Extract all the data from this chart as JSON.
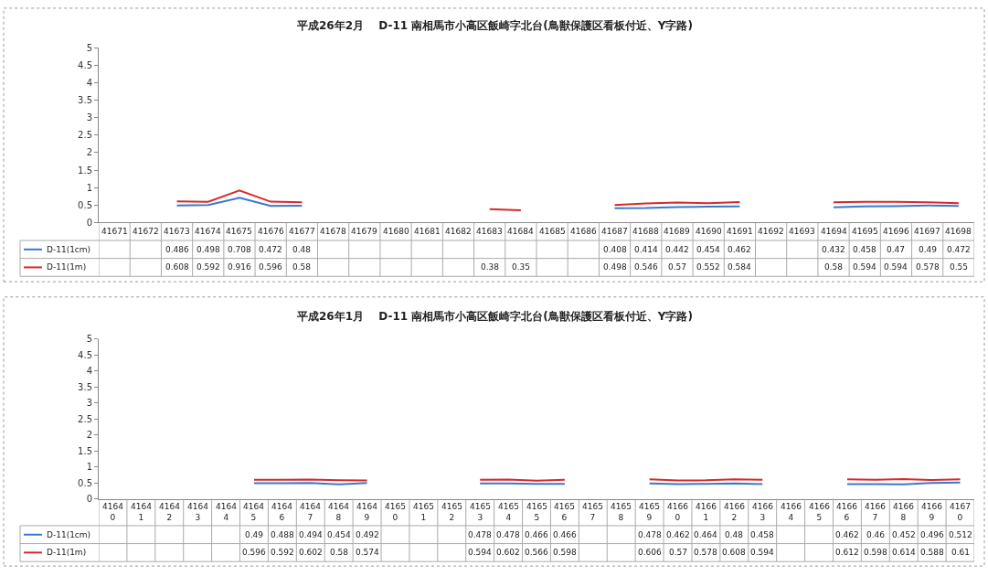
{
  "chart_data": [
    {
      "type": "line",
      "title": "平成26年2月　 D-11 南相馬市小高区飯崎字北台(鳥獣保護区看板付近、Y字路)",
      "categories": [
        "41671",
        "41672",
        "41673",
        "41674",
        "41675",
        "41676",
        "41677",
        "41678",
        "41679",
        "41680",
        "41681",
        "41682",
        "41683",
        "41684",
        "41685",
        "41686",
        "41687",
        "41688",
        "41689",
        "41690",
        "41691",
        "41692",
        "41693",
        "41694",
        "41695",
        "41696",
        "41697",
        "41698"
      ],
      "series": [
        {
          "name": "D-11(1cm)",
          "color": "#3a78cc",
          "values": [
            null,
            null,
            0.486,
            0.498,
            0.708,
            0.472,
            0.48,
            null,
            null,
            null,
            null,
            null,
            null,
            null,
            null,
            null,
            0.408,
            0.414,
            0.442,
            0.454,
            0.462,
            null,
            null,
            0.432,
            0.458,
            0.47,
            0.49,
            0.472
          ]
        },
        {
          "name": "D-11(1m)",
          "color": "#d42a2a",
          "values": [
            null,
            null,
            0.608,
            0.592,
            0.916,
            0.596,
            0.58,
            null,
            null,
            null,
            null,
            null,
            0.38,
            0.35,
            null,
            null,
            0.498,
            0.546,
            0.57,
            0.552,
            0.584,
            null,
            null,
            0.58,
            0.594,
            0.594,
            0.578,
            0.55
          ]
        }
      ],
      "ylim": [
        0,
        5
      ],
      "yticks": [
        0,
        0.5,
        1,
        1.5,
        2,
        2.5,
        3,
        3.5,
        4,
        4.5,
        5
      ],
      "data_labels": true,
      "marker": "none",
      "line_style": "solid",
      "legend": "bottom left"
    },
    {
      "type": "line",
      "title": "平成26年1月　 D-11 南相馬市小高区飯崎字北台(鳥獣保護区看板付近、Y字路)",
      "categories": [
        "41640",
        "41641",
        "41642",
        "41643",
        "41644",
        "41645",
        "41646",
        "41647",
        "41648",
        "41649",
        "41650",
        "41651",
        "41652",
        "41653",
        "41654",
        "41655",
        "41656",
        "41657",
        "41658",
        "41659",
        "41660",
        "41661",
        "41662",
        "41663",
        "41664",
        "41665",
        "41666",
        "41667",
        "41668",
        "41669",
        "41670"
      ],
      "series": [
        {
          "name": "D-11(1cm)",
          "color": "#3a78cc",
          "values": [
            null,
            null,
            null,
            null,
            null,
            0.49,
            0.488,
            0.494,
            0.454,
            0.492,
            null,
            null,
            null,
            0.478,
            0.478,
            0.466,
            0.466,
            null,
            null,
            0.478,
            0.462,
            0.464,
            0.48,
            0.458,
            null,
            null,
            0.462,
            0.46,
            0.452,
            0.496,
            0.512
          ]
        },
        {
          "name": "D-11(1m)",
          "color": "#d42a2a",
          "values": [
            null,
            null,
            null,
            null,
            null,
            0.596,
            0.592,
            0.602,
            0.58,
            0.574,
            null,
            null,
            null,
            0.594,
            0.602,
            0.566,
            0.598,
            null,
            null,
            0.606,
            0.57,
            0.578,
            0.608,
            0.594,
            null,
            null,
            0.612,
            0.598,
            0.614,
            0.588,
            0.61
          ]
        }
      ],
      "ylim": [
        0,
        5
      ],
      "yticks": [
        0,
        0.5,
        1,
        1.5,
        2,
        2.5,
        3,
        3.5,
        4,
        4.5,
        5
      ],
      "data_labels": true,
      "marker": "none",
      "line_style": "solid",
      "legend": "bottom left"
    }
  ]
}
